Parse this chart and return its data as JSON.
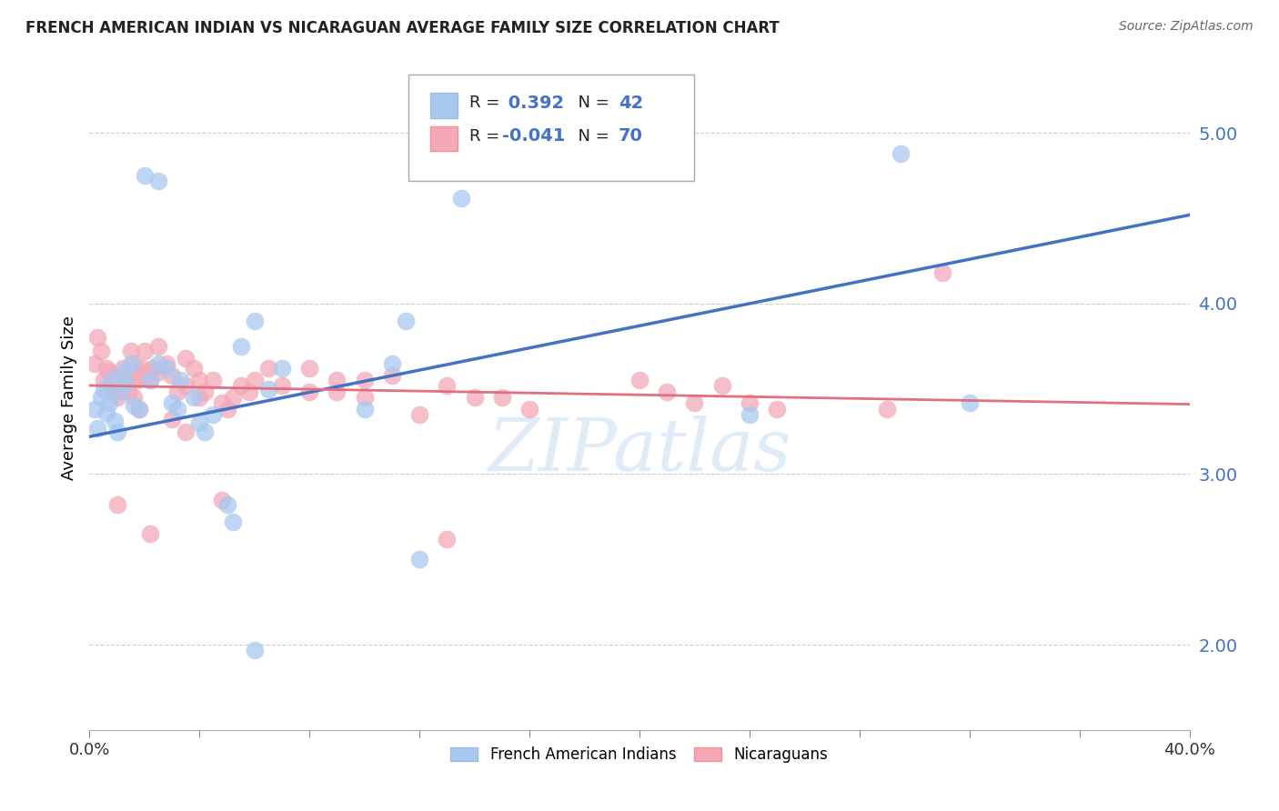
{
  "title": "FRENCH AMERICAN INDIAN VS NICARAGUAN AVERAGE FAMILY SIZE CORRELATION CHART",
  "source": "Source: ZipAtlas.com",
  "ylabel": "Average Family Size",
  "yticks": [
    2.0,
    3.0,
    4.0,
    5.0
  ],
  "xlim": [
    0.0,
    0.4
  ],
  "ylim": [
    1.5,
    5.4
  ],
  "legend_blue_r": "R = ",
  "legend_blue_val": " 0.392",
  "legend_blue_n": "  N = ",
  "legend_blue_nval": "42",
  "legend_pink_r": "R = ",
  "legend_pink_val": "-0.041",
  "legend_pink_n": "  N = ",
  "legend_pink_nval": "70",
  "blue_color": "#a8c8f0",
  "pink_color": "#f4a8b8",
  "blue_line_color": "#4472c4",
  "pink_line_color": "#e07080",
  "tick_color": "#4472c4",
  "watermark_text": "ZIPatlas",
  "blue_scatter": [
    [
      0.002,
      3.38
    ],
    [
      0.003,
      3.27
    ],
    [
      0.004,
      3.45
    ],
    [
      0.005,
      3.5
    ],
    [
      0.006,
      3.36
    ],
    [
      0.007,
      3.42
    ],
    [
      0.008,
      3.55
    ],
    [
      0.009,
      3.31
    ],
    [
      0.01,
      3.25
    ],
    [
      0.011,
      3.48
    ],
    [
      0.012,
      3.6
    ],
    [
      0.013,
      3.53
    ],
    [
      0.015,
      3.65
    ],
    [
      0.016,
      3.4
    ],
    [
      0.018,
      3.38
    ],
    [
      0.022,
      3.55
    ],
    [
      0.025,
      3.65
    ],
    [
      0.028,
      3.62
    ],
    [
      0.03,
      3.42
    ],
    [
      0.032,
      3.38
    ],
    [
      0.033,
      3.55
    ],
    [
      0.038,
      3.45
    ],
    [
      0.04,
      3.3
    ],
    [
      0.042,
      3.25
    ],
    [
      0.045,
      3.35
    ],
    [
      0.05,
      2.82
    ],
    [
      0.052,
      2.72
    ],
    [
      0.055,
      3.75
    ],
    [
      0.06,
      3.9
    ],
    [
      0.065,
      3.5
    ],
    [
      0.07,
      3.62
    ],
    [
      0.1,
      3.38
    ],
    [
      0.11,
      3.65
    ],
    [
      0.115,
      3.9
    ],
    [
      0.12,
      2.5
    ],
    [
      0.025,
      4.72
    ],
    [
      0.135,
      4.62
    ],
    [
      0.295,
      4.88
    ],
    [
      0.24,
      3.35
    ],
    [
      0.32,
      3.42
    ],
    [
      0.02,
      4.75
    ],
    [
      0.06,
      1.97
    ]
  ],
  "pink_scatter": [
    [
      0.002,
      3.65
    ],
    [
      0.003,
      3.8
    ],
    [
      0.004,
      3.72
    ],
    [
      0.005,
      3.55
    ],
    [
      0.006,
      3.62
    ],
    [
      0.007,
      3.6
    ],
    [
      0.008,
      3.48
    ],
    [
      0.009,
      3.52
    ],
    [
      0.01,
      3.45
    ],
    [
      0.011,
      3.5
    ],
    [
      0.012,
      3.62
    ],
    [
      0.013,
      3.55
    ],
    [
      0.014,
      3.48
    ],
    [
      0.015,
      3.72
    ],
    [
      0.016,
      3.65
    ],
    [
      0.017,
      3.55
    ],
    [
      0.018,
      3.58
    ],
    [
      0.019,
      3.62
    ],
    [
      0.02,
      3.72
    ],
    [
      0.021,
      3.6
    ],
    [
      0.022,
      3.55
    ],
    [
      0.023,
      3.62
    ],
    [
      0.025,
      3.75
    ],
    [
      0.028,
      3.65
    ],
    [
      0.03,
      3.58
    ],
    [
      0.032,
      3.48
    ],
    [
      0.035,
      3.52
    ],
    [
      0.038,
      3.62
    ],
    [
      0.04,
      3.45
    ],
    [
      0.042,
      3.48
    ],
    [
      0.045,
      3.55
    ],
    [
      0.048,
      3.42
    ],
    [
      0.05,
      3.38
    ],
    [
      0.052,
      3.45
    ],
    [
      0.055,
      3.52
    ],
    [
      0.058,
      3.48
    ],
    [
      0.06,
      3.55
    ],
    [
      0.065,
      3.62
    ],
    [
      0.07,
      3.52
    ],
    [
      0.08,
      3.48
    ],
    [
      0.09,
      3.55
    ],
    [
      0.1,
      3.45
    ],
    [
      0.11,
      3.58
    ],
    [
      0.12,
      3.35
    ],
    [
      0.13,
      3.52
    ],
    [
      0.14,
      3.45
    ],
    [
      0.15,
      3.45
    ],
    [
      0.16,
      3.38
    ],
    [
      0.01,
      2.82
    ],
    [
      0.022,
      2.65
    ],
    [
      0.03,
      3.32
    ],
    [
      0.035,
      3.25
    ],
    [
      0.048,
      2.85
    ],
    [
      0.13,
      2.62
    ],
    [
      0.2,
      3.55
    ],
    [
      0.21,
      3.48
    ],
    [
      0.22,
      3.42
    ],
    [
      0.23,
      3.52
    ],
    [
      0.24,
      3.42
    ],
    [
      0.25,
      3.38
    ],
    [
      0.29,
      3.38
    ],
    [
      0.31,
      4.18
    ],
    [
      0.016,
      3.45
    ],
    [
      0.018,
      3.38
    ],
    [
      0.025,
      3.6
    ],
    [
      0.035,
      3.68
    ],
    [
      0.04,
      3.55
    ],
    [
      0.08,
      3.62
    ],
    [
      0.09,
      3.48
    ],
    [
      0.1,
      3.55
    ]
  ],
  "blue_line": {
    "x0": 0.0,
    "y0": 3.22,
    "x1": 0.4,
    "y1": 4.52
  },
  "pink_line": {
    "x0": 0.0,
    "y0": 3.52,
    "x1": 0.4,
    "y1": 3.41
  }
}
